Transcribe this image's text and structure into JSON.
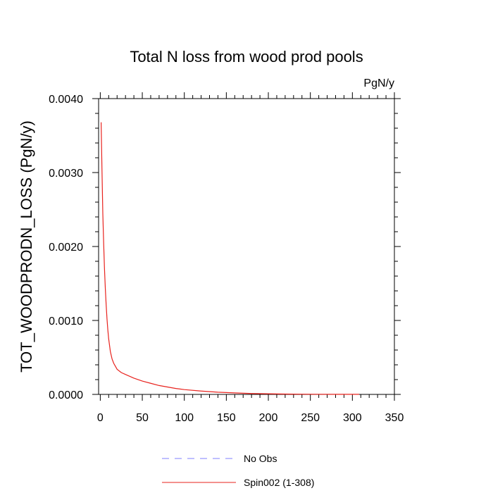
{
  "chart_data": {
    "type": "line",
    "title": "Total N loss from wood prod pools",
    "units_label": "PgN/y",
    "xlabel": "",
    "ylabel": "TOT_WOODPRODN_LOSS  (PgN/y)",
    "xlim": [
      -2,
      350
    ],
    "ylim": [
      0,
      0.004
    ],
    "x_ticks": [
      0,
      50,
      100,
      150,
      200,
      250,
      300,
      350
    ],
    "x_tick_labels": [
      "0",
      "50",
      "100",
      "150",
      "200",
      "250",
      "300",
      "350"
    ],
    "y_ticks": [
      0,
      0.001,
      0.002,
      0.003,
      0.004
    ],
    "y_tick_labels": [
      "0.0000",
      "0.0010",
      "0.0020",
      "0.0030",
      "0.0040"
    ],
    "grid": false,
    "legend_position": "bottom",
    "legend": [
      {
        "label": "No Obs",
        "color": "#7f7fff",
        "dash": "dashed"
      },
      {
        "label": "Spin002 (1-308)",
        "color": "#e8231e",
        "dash": "solid"
      }
    ],
    "series": [
      {
        "name": "Spin002 (1-308)",
        "color": "#e8231e",
        "x": [
          1,
          2,
          3,
          4,
          5,
          6,
          7,
          8,
          9,
          10,
          12,
          14,
          16,
          18,
          20,
          25,
          30,
          40,
          50,
          60,
          70,
          80,
          90,
          100,
          120,
          140,
          160,
          180,
          200,
          220,
          240,
          260,
          280,
          300,
          308
        ],
        "y": [
          0.00368,
          0.00305,
          0.00245,
          0.00205,
          0.0017,
          0.00143,
          0.00121,
          0.00102,
          0.00087,
          0.00075,
          0.00058,
          0.00048,
          0.00042,
          0.00038,
          0.00034,
          0.000295,
          0.00027,
          0.00022,
          0.00018,
          0.00015,
          0.00012,
          0.0001,
          8e-05,
          6.5e-05,
          4.5e-05,
          3e-05,
          2e-05,
          1.2e-05,
          8e-06,
          5e-06,
          3e-06,
          2e-06,
          1.5e-06,
          1e-06,
          1e-06
        ]
      }
    ]
  }
}
